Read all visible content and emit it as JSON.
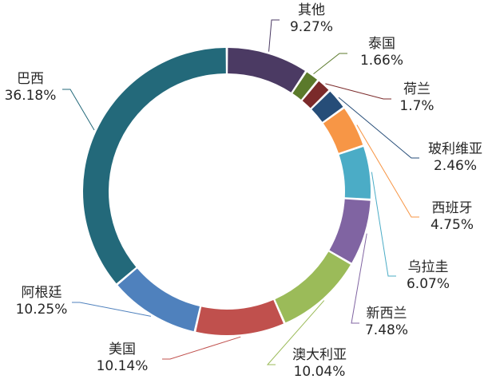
{
  "chart_data": {
    "type": "pie",
    "variant": "donut",
    "title": "",
    "legend": "none",
    "slices": [
      {
        "name": "其他",
        "value": 9.27,
        "label": "9.27%",
        "color": "#4b3a63"
      },
      {
        "name": "泰国",
        "value": 1.66,
        "label": "1.66%",
        "color": "#5b7a2b"
      },
      {
        "name": "荷兰",
        "value": 1.7,
        "label": "1.7%",
        "color": "#7b2a2a"
      },
      {
        "name": "玻利维亚",
        "value": 2.46,
        "label": "2.46%",
        "color": "#264d78"
      },
      {
        "name": "西班牙",
        "value": 4.75,
        "label": "4.75%",
        "color": "#f79646"
      },
      {
        "name": "乌拉圭",
        "value": 6.07,
        "label": "6.07%",
        "color": "#4bacc6"
      },
      {
        "name": "新西兰",
        "value": 7.48,
        "label": "7.48%",
        "color": "#8064a2"
      },
      {
        "name": "澳大利亚",
        "value": 10.04,
        "label": "10.04%",
        "color": "#9bbb59"
      },
      {
        "name": "美国",
        "value": 10.14,
        "label": "10.14%",
        "color": "#c0504d"
      },
      {
        "name": "阿根廷",
        "value": 10.25,
        "label": "10.25%",
        "color": "#4f81bd"
      },
      {
        "name": "巴西",
        "value": 36.18,
        "label": "36.18%",
        "color": "#23697a"
      }
    ]
  }
}
